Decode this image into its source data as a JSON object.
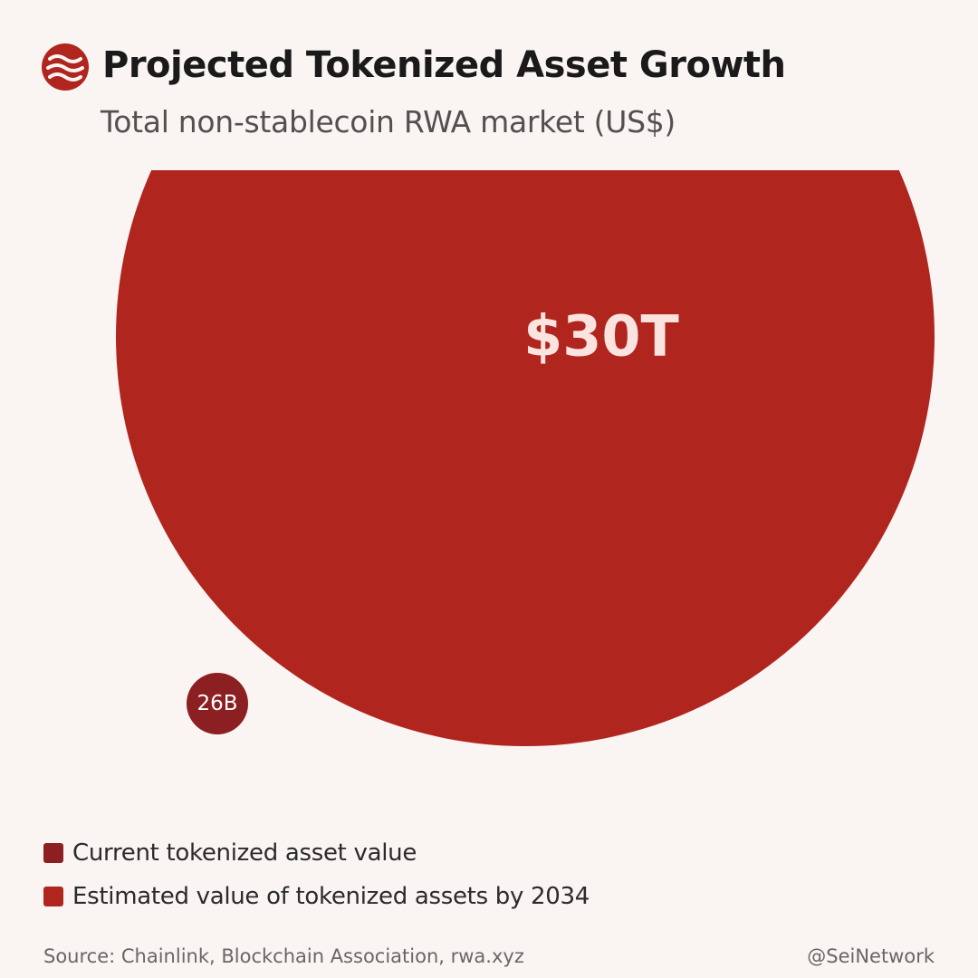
{
  "title": "Projected Tokenized Asset Growth",
  "subtitle": "Total non-stablecoin RWA market (US$)",
  "logo": {
    "icon": "sei-wave-logo-icon",
    "color": "#b0261f"
  },
  "chart_data": {
    "type": "bubble",
    "title": "Projected Tokenized Asset Growth",
    "subtitle": "Total non-stablecoin RWA market (US$)",
    "bubbles": [
      {
        "name": "Current tokenized asset value",
        "value": 26000000000,
        "label": "26B",
        "color": "#8b1f22"
      },
      {
        "name": "Estimated value of tokenized assets by 2034",
        "value": 30000000000000,
        "label": "$30T",
        "color": "#b0261f"
      }
    ]
  },
  "legend": {
    "items": [
      {
        "label": "Current tokenized asset value",
        "color": "#8b1f22"
      },
      {
        "label": "Estimated value of tokenized assets by 2034",
        "color": "#b0261f"
      }
    ]
  },
  "footer": {
    "source": "Source: Chainlink, Blockchain Association, rwa.xyz",
    "handle": "@SeiNetwork"
  },
  "colors": {
    "background": "#faf4f3",
    "large_label": "#fbe3df",
    "small_label": "#ffffff"
  }
}
